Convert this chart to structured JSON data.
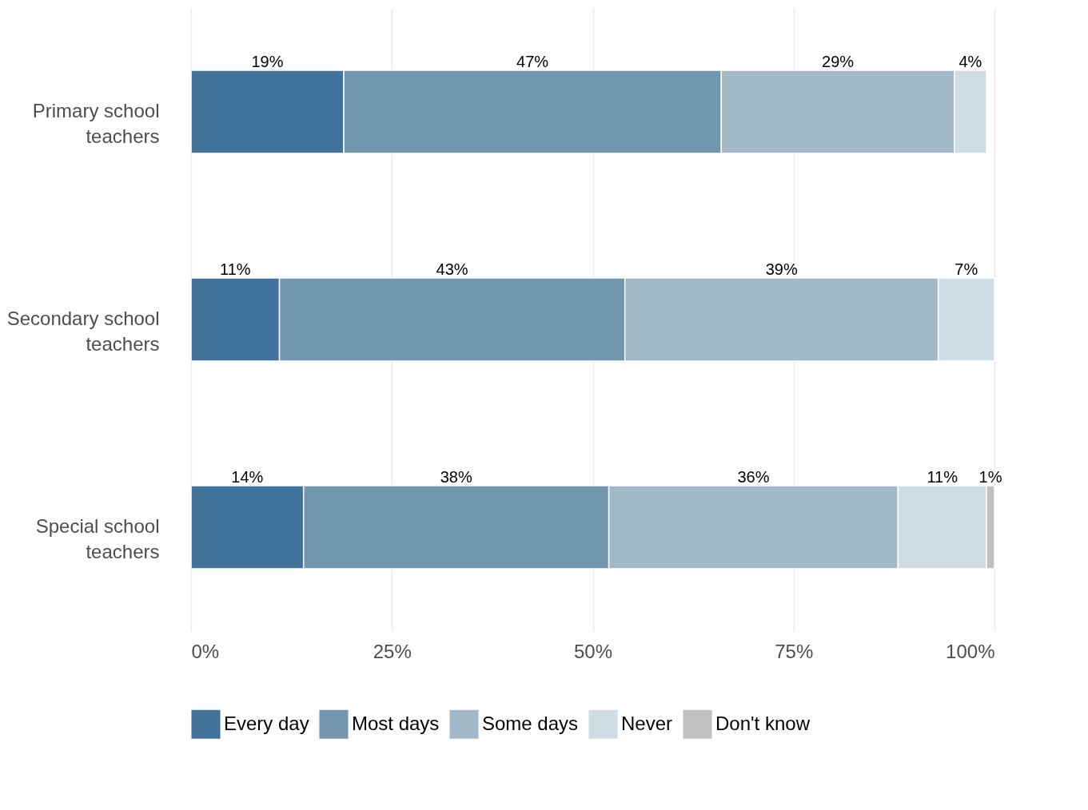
{
  "chart_data": {
    "type": "bar",
    "orientation": "horizontal",
    "stacked": true,
    "categories": [
      "Primary school teachers",
      "Secondary school teachers",
      "Special school teachers"
    ],
    "series": [
      {
        "name": "Every day",
        "color": "#41739a",
        "values": [
          19,
          11,
          14
        ],
        "value_labels": [
          "19%",
          "11%",
          "14%"
        ]
      },
      {
        "name": "Most days",
        "color": "#7196ae",
        "values": [
          47,
          43,
          38
        ],
        "value_labels": [
          "47%",
          "43%",
          "38%"
        ]
      },
      {
        "name": "Some days",
        "color": "#a2b8c7",
        "values": [
          29,
          39,
          36
        ],
        "value_labels": [
          "29%",
          "39%",
          "36%"
        ]
      },
      {
        "name": "Never",
        "color": "#d0dce4",
        "values": [
          4,
          7,
          11
        ],
        "value_labels": [
          "4%",
          "7%",
          "11%"
        ]
      },
      {
        "name": "Don't know",
        "color": "#c0c0c0",
        "values": [
          null,
          null,
          1
        ],
        "value_labels": [
          null,
          null,
          "1%"
        ]
      }
    ],
    "xlim": [
      0,
      100
    ],
    "xticks": [
      {
        "value": 0,
        "label": "0%"
      },
      {
        "value": 25,
        "label": "25%"
      },
      {
        "value": 50,
        "label": "50%"
      },
      {
        "value": 75,
        "label": "75%"
      },
      {
        "value": 100,
        "label": "100%"
      }
    ],
    "grid": "x",
    "legend": "bottom"
  }
}
